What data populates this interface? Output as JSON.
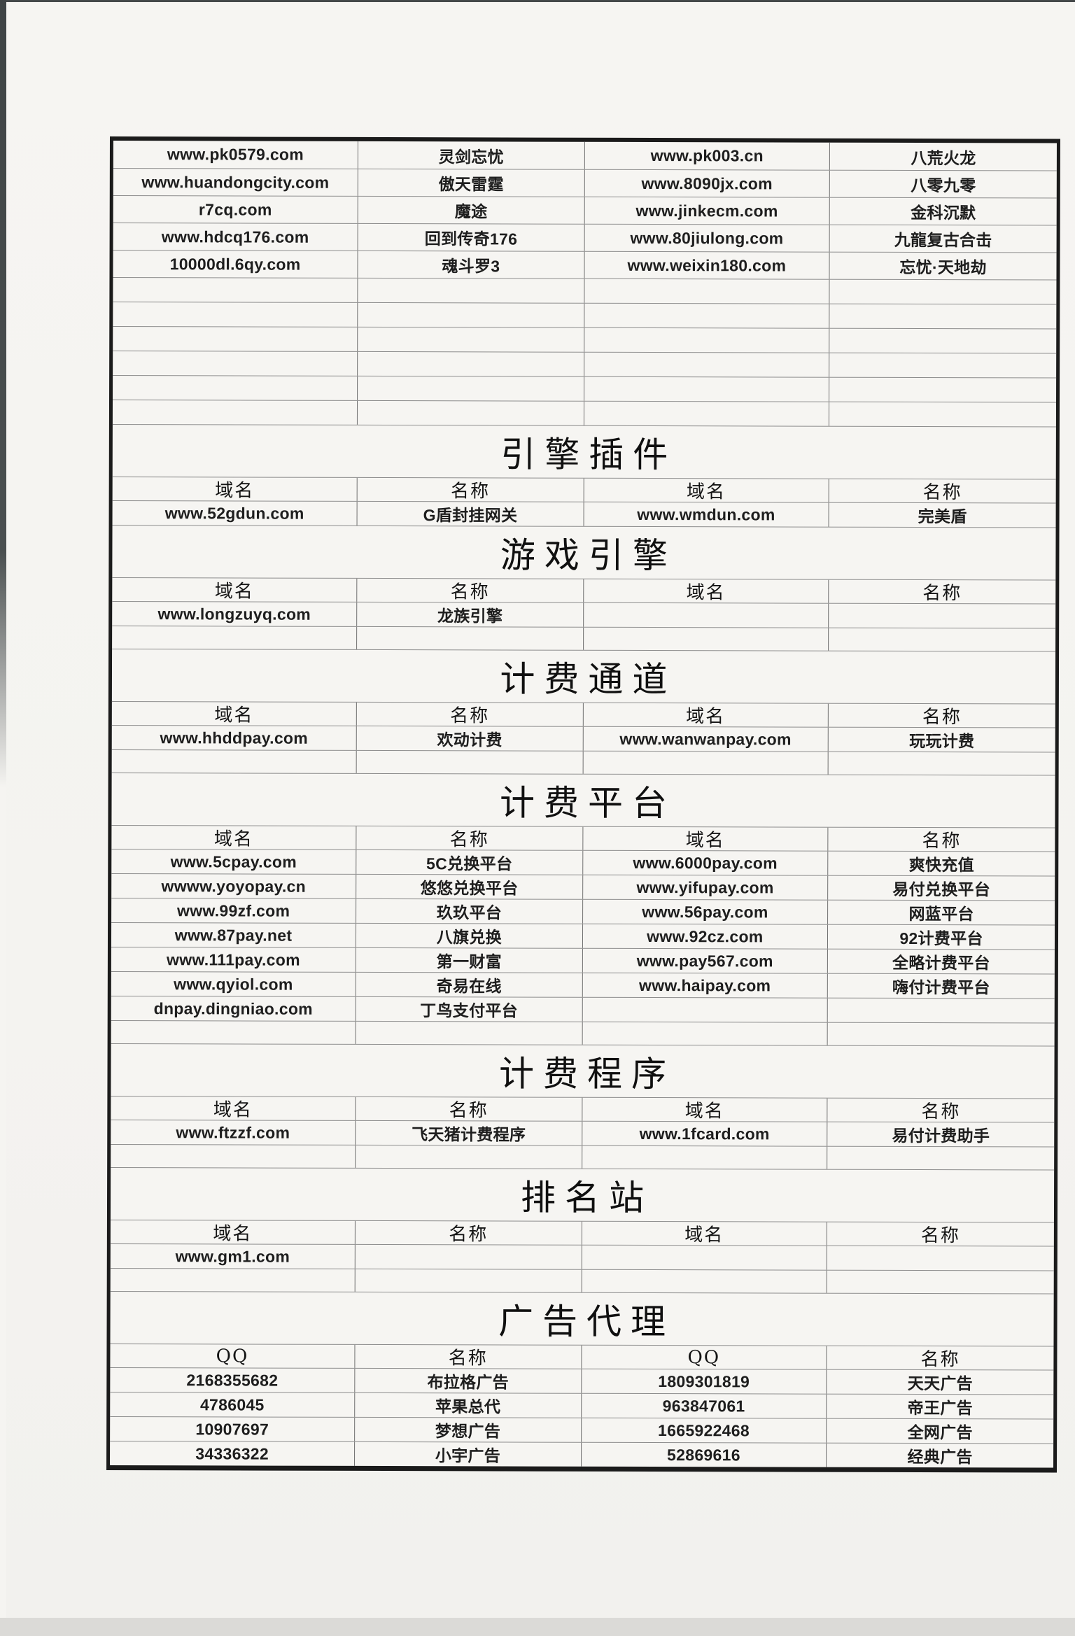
{
  "document": {
    "type": "scanned-table-page",
    "colors": {
      "paper": "#f5f4f1",
      "table_border": "#1b1b1b",
      "grid_line": "#8d8d8d",
      "scan_edge": "#45494a",
      "text": "#1e1e1e"
    },
    "continuation_table": {
      "rows": [
        [
          "www.pk0579.com",
          "灵剑忘忧",
          "www.pk003.cn",
          "八荒火龙"
        ],
        [
          "www.huandongcity.com",
          "傲天雷霆",
          "www.8090jx.com",
          "八零九零"
        ],
        [
          "r7cq.com",
          "魔途",
          "www.jinkecm.com",
          "金科沉默"
        ],
        [
          "www.hdcq176.com",
          "回到传奇176",
          "www.80jiulong.com",
          "九龍复古合击"
        ],
        [
          "10000dl.6qy.com",
          "魂斗罗3",
          "www.weixin180.com",
          "忘忧·天地劫"
        ]
      ],
      "empty_rows": 6
    },
    "sections": [
      {
        "title": "引擎插件",
        "headers": [
          "域名",
          "名称",
          "域名",
          "名称"
        ],
        "rows": [
          [
            "www.52gdun.com",
            "G盾封挂网关",
            "www.wmdun.com",
            "完美盾"
          ]
        ],
        "empty_rows": 0
      },
      {
        "title": "游戏引擎",
        "headers": [
          "域名",
          "名称",
          "域名",
          "名称"
        ],
        "rows": [
          [
            "www.longzuyq.com",
            "龙族引擎",
            "",
            ""
          ]
        ],
        "empty_rows": 1
      },
      {
        "title": "计费通道",
        "headers": [
          "域名",
          "名称",
          "域名",
          "名称"
        ],
        "rows": [
          [
            "www.hhddpay.com",
            "欢动计费",
            "www.wanwanpay.com",
            "玩玩计费"
          ]
        ],
        "empty_rows": 1
      },
      {
        "title": "计费平台",
        "headers": [
          "域名",
          "名称",
          "域名",
          "名称"
        ],
        "rows": [
          [
            "www.5cpay.com",
            "5C兑换平台",
            "www.6000pay.com",
            "爽快充值"
          ],
          [
            "wwww.yoyopay.cn",
            "悠悠兑换平台",
            "www.yifupay.com",
            "易付兑换平台"
          ],
          [
            "www.99zf.com",
            "玖玖平台",
            "www.56pay.com",
            "网蓝平台"
          ],
          [
            "www.87pay.net",
            "八旗兑换",
            "www.92cz.com",
            "92计费平台"
          ],
          [
            "www.111pay.com",
            "第一财富",
            "www.pay567.com",
            "全略计费平台"
          ],
          [
            "www.qyiol.com",
            "奇易在线",
            "www.haipay.com",
            "嗨付计费平台"
          ],
          [
            "dnpay.dingniao.com",
            "丁鸟支付平台",
            "",
            ""
          ]
        ],
        "empty_rows": 1
      },
      {
        "title": "计费程序",
        "headers": [
          "域名",
          "名称",
          "域名",
          "名称"
        ],
        "rows": [
          [
            "www.ftzzf.com",
            "飞天猪计费程序",
            "www.1fcard.com",
            "易付计费助手"
          ]
        ],
        "empty_rows": 1
      },
      {
        "title": "排名站",
        "headers": [
          "域名",
          "名称",
          "域名",
          "名称"
        ],
        "rows": [
          [
            "www.gm1.com",
            "",
            "",
            ""
          ]
        ],
        "empty_rows": 1
      },
      {
        "title": "广告代理",
        "headers": [
          "QQ",
          "名称",
          "QQ",
          "名称"
        ],
        "rows": [
          [
            "2168355682",
            "布拉格广告",
            "1809301819",
            "天天广告"
          ],
          [
            "4786045",
            "苹果总代",
            "963847061",
            "帝王广告"
          ],
          [
            "10907697",
            "梦想广告",
            "1665922468",
            "全网广告"
          ],
          [
            "34336322",
            "小宇广告",
            "52869616",
            "经典广告"
          ]
        ],
        "empty_rows": 0
      }
    ]
  }
}
